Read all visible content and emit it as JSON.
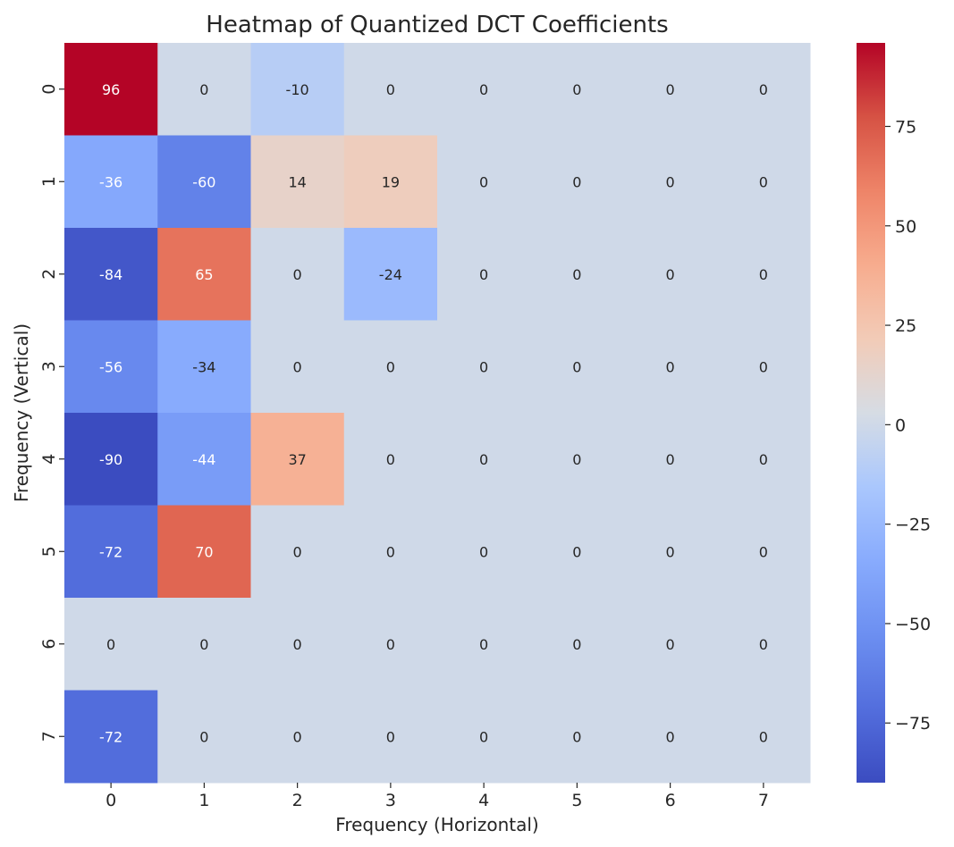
{
  "chart_data": {
    "type": "heatmap",
    "title": "Heatmap of Quantized DCT Coefficients",
    "xlabel": "Frequency (Horizontal)",
    "ylabel": "Frequency (Vertical)",
    "x_categories": [
      "0",
      "1",
      "2",
      "3",
      "4",
      "5",
      "6",
      "7"
    ],
    "y_categories": [
      "0",
      "1",
      "2",
      "3",
      "4",
      "5",
      "6",
      "7"
    ],
    "values": [
      [
        96,
        0,
        -10,
        0,
        0,
        0,
        0,
        0
      ],
      [
        -36,
        -60,
        14,
        19,
        0,
        0,
        0,
        0
      ],
      [
        -84,
        65,
        0,
        -24,
        0,
        0,
        0,
        0
      ],
      [
        -56,
        -34,
        0,
        0,
        0,
        0,
        0,
        0
      ],
      [
        -90,
        -44,
        37,
        0,
        0,
        0,
        0,
        0
      ],
      [
        -72,
        70,
        0,
        0,
        0,
        0,
        0,
        0
      ],
      [
        0,
        0,
        0,
        0,
        0,
        0,
        0,
        0
      ],
      [
        -72,
        0,
        0,
        0,
        0,
        0,
        0,
        0
      ]
    ],
    "colormap": "coolwarm",
    "color_range": [
      -90,
      96
    ],
    "colorbar_ticks": [
      75,
      50,
      25,
      0,
      -25,
      -50,
      -75
    ],
    "colorbar_tick_labels": [
      "75",
      "50",
      "25",
      "0",
      "−25",
      "−50",
      "−75"
    ],
    "annotated": true,
    "grid": false
  }
}
